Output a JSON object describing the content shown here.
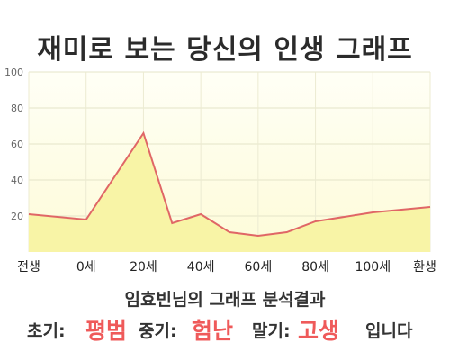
{
  "title": "재미로 보는 당신의 인생 그래프",
  "chart_data": {
    "type": "area",
    "x": [
      "전생",
      "0세",
      "20세",
      "40세",
      "60세",
      "80세",
      "100세",
      "환생"
    ],
    "points": [
      {
        "x": "전생",
        "y": 21
      },
      {
        "x": "0세",
        "y": 18
      },
      {
        "x": "20세",
        "y": 66
      },
      {
        "x": "",
        "y": 16
      },
      {
        "x": "40세",
        "y": 21
      },
      {
        "x": "",
        "y": 11
      },
      {
        "x": "60세",
        "y": 9
      },
      {
        "x": "",
        "y": 11
      },
      {
        "x": "80세",
        "y": 17
      },
      {
        "x": "100세",
        "y": 22
      },
      {
        "x": "환생",
        "y": 25
      }
    ],
    "yticks": [
      20,
      40,
      60,
      80,
      100
    ],
    "ylim": [
      0,
      100
    ],
    "line_color": "#e06666",
    "fill_color": "#f8f4a6",
    "background_top": "#fffef8",
    "grid": true
  },
  "summary": {
    "subtitle": "임효빈님의 그래프 분석결과",
    "early_label": "초기:",
    "early_value": "평범",
    "middle_label": "중기:",
    "middle_value": "험난",
    "late_label": "말기:",
    "late_value": "고생",
    "suffix": "입니다"
  },
  "colors": {
    "highlight": "#ef5a5a"
  }
}
